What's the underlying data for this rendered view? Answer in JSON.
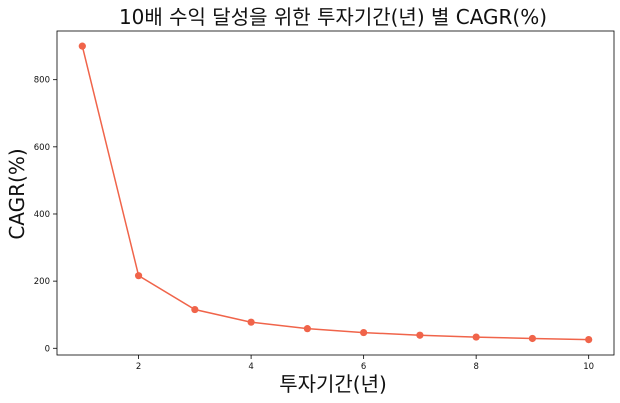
{
  "chart_data": {
    "type": "line",
    "title": "10배 수익 달성을 위한 투자기간(년) 별 CAGR(%)",
    "xlabel": "투자기간(년)",
    "ylabel": "CAGR(%)",
    "x": [
      1,
      2,
      3,
      4,
      5,
      6,
      7,
      8,
      9,
      10
    ],
    "series": [
      {
        "values": [
          900.0,
          216.2,
          115.4,
          77.8,
          58.5,
          46.8,
          38.9,
          33.4,
          29.2,
          25.9
        ]
      }
    ],
    "xticks": [
      2,
      4,
      6,
      8,
      10
    ],
    "xtick_labels": [
      "2",
      "4",
      "6",
      "8",
      "10"
    ],
    "yticks": [
      0,
      200,
      400,
      600,
      800
    ],
    "ytick_labels": [
      "0",
      "200",
      "400",
      "600",
      "800"
    ],
    "xlim": [
      0.55,
      10.45
    ],
    "ylim": [
      -20,
      945
    ],
    "grid": false,
    "line_color": "#f0644a",
    "marker": "circle"
  }
}
